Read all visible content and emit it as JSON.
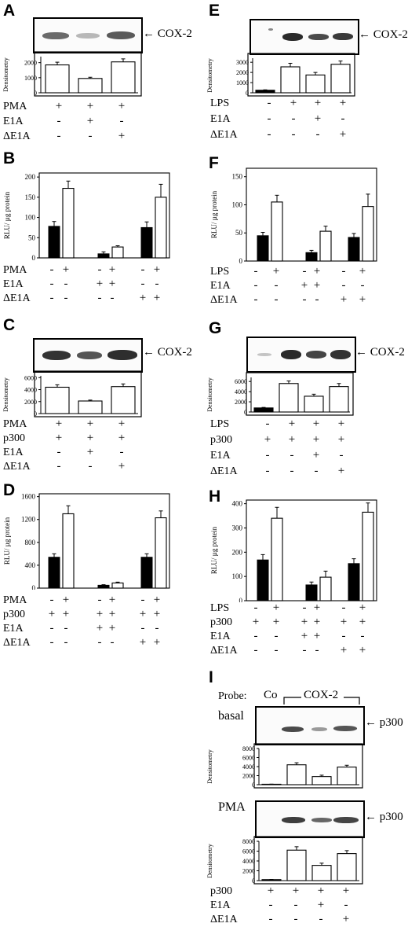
{
  "marker_labels": {
    "cox2": "COX-2",
    "p300": "p300"
  },
  "panels": {
    "A": {
      "letter": "A",
      "ylabel": "Densitometry",
      "yticks": [
        "0",
        "1000",
        "2000"
      ],
      "bars": [
        1850,
        950,
        2050
      ],
      "errors": [
        180,
        80,
        200
      ],
      "ymax": 2400,
      "rows": [
        {
          "label": "PMA",
          "marks": [
            "+",
            "+",
            "+"
          ]
        },
        {
          "label": "E1A",
          "marks": [
            "-",
            "+",
            "-"
          ]
        },
        {
          "label": "ΔE1A",
          "marks": [
            "-",
            "-",
            "+"
          ]
        }
      ]
    },
    "B": {
      "letter": "B",
      "ylabel": "RLU/ µg protein",
      "yticks": [
        "0",
        "50",
        "100",
        "150",
        "200"
      ],
      "black": [
        78,
        10,
        75
      ],
      "white": [
        172,
        27,
        150
      ],
      "errB": [
        12,
        5,
        14
      ],
      "errW": [
        18,
        3,
        32
      ],
      "ymax": 210,
      "rows": [
        {
          "label": "PMA",
          "marks": [
            "-",
            "+",
            "-",
            "+",
            "-",
            "+"
          ]
        },
        {
          "label": "E1A",
          "marks": [
            "-",
            "-",
            "+",
            "+",
            "-",
            "-"
          ]
        },
        {
          "label": "ΔE1A",
          "marks": [
            "-",
            "-",
            "-",
            "-",
            "+",
            "+"
          ]
        }
      ]
    },
    "C": {
      "letter": "C",
      "ylabel": "Densitometry",
      "yticks": [
        "0",
        "2000",
        "4000",
        "6000"
      ],
      "bars": [
        4400,
        2100,
        4500
      ],
      "errors": [
        400,
        150,
        450
      ],
      "ymax": 6300,
      "rows": [
        {
          "label": "PMA",
          "marks": [
            "+",
            "+",
            "+"
          ]
        },
        {
          "label": "p300",
          "marks": [
            "+",
            "+",
            "+"
          ]
        },
        {
          "label": "E1A",
          "marks": [
            "-",
            "+",
            "-"
          ]
        },
        {
          "label": "ΔE1A",
          "marks": [
            "-",
            "-",
            "+"
          ]
        }
      ]
    },
    "D": {
      "letter": "D",
      "ylabel": "RLU/ µg protein",
      "yticks": [
        "0",
        "400",
        "800",
        "1200",
        "1600"
      ],
      "black": [
        540,
        50,
        540
      ],
      "white": [
        1300,
        90,
        1230
      ],
      "errB": [
        60,
        10,
        60
      ],
      "errW": [
        140,
        15,
        120
      ],
      "ymax": 1650,
      "rows": [
        {
          "label": "PMA",
          "marks": [
            "-",
            "+",
            "-",
            "+",
            "-",
            "+"
          ]
        },
        {
          "label": "p300",
          "marks": [
            "+",
            "+",
            "+",
            "+",
            "+",
            "+"
          ]
        },
        {
          "label": "E1A",
          "marks": [
            "-",
            "-",
            "+",
            "+",
            "-",
            "-"
          ]
        },
        {
          "label": "ΔE1A",
          "marks": [
            "-",
            "-",
            "-",
            "-",
            "+",
            "+"
          ]
        }
      ]
    },
    "E": {
      "letter": "E",
      "ylabel": "Densitometry",
      "yticks": [
        "0",
        "1000",
        "2000",
        "3000"
      ],
      "bars": [
        250,
        2550,
        1750,
        2800
      ],
      "first_black": true,
      "errors": [
        40,
        350,
        250,
        320
      ],
      "ymax": 3400,
      "rows": [
        {
          "label": "LPS",
          "marks": [
            "-",
            "+",
            "+",
            "+"
          ]
        },
        {
          "label": "E1A",
          "marks": [
            "-",
            "-",
            "+",
            "-"
          ]
        },
        {
          "label": "ΔE1A",
          "marks": [
            "-",
            "-",
            "-",
            "+"
          ]
        }
      ]
    },
    "F": {
      "letter": "F",
      "ylabel": "RLU/ µg protein",
      "yticks": [
        "0",
        "50",
        "100",
        "150"
      ],
      "black": [
        45,
        15,
        42
      ],
      "white": [
        105,
        53,
        97
      ],
      "errB": [
        6,
        4,
        7
      ],
      "errW": [
        12,
        9,
        22
      ],
      "ymax": 165,
      "rows": [
        {
          "label": "LPS",
          "marks": [
            "-",
            "+",
            "-",
            "+",
            "-",
            "+"
          ]
        },
        {
          "label": "E1A",
          "marks": [
            "-",
            "-",
            "+",
            "+",
            "-",
            "-"
          ]
        },
        {
          "label": "ΔE1A",
          "marks": [
            "-",
            "-",
            "-",
            "-",
            "+",
            "+"
          ]
        }
      ]
    },
    "G": {
      "letter": "G",
      "ylabel": "Densitometry",
      "yticks": [
        "0",
        "2000",
        "4000",
        "6000"
      ],
      "bars": [
        800,
        5600,
        3100,
        5000
      ],
      "first_black": true,
      "errors": [
        100,
        500,
        400,
        600
      ],
      "ymax": 6800,
      "rows": [
        {
          "label": "LPS",
          "marks": [
            "-",
            "+",
            "+",
            "+"
          ]
        },
        {
          "label": "p300",
          "marks": [
            "+",
            "+",
            "+",
            "+"
          ]
        },
        {
          "label": "E1A",
          "marks": [
            "-",
            "-",
            "+",
            "-"
          ]
        },
        {
          "label": "ΔE1A",
          "marks": [
            "-",
            "-",
            "-",
            "+"
          ]
        }
      ]
    },
    "H": {
      "letter": "H",
      "ylabel": "RLU/ µg protein",
      "yticks": [
        "0",
        "100",
        "200",
        "300",
        "400"
      ],
      "black": [
        168,
        65,
        153
      ],
      "white": [
        340,
        97,
        365
      ],
      "errB": [
        22,
        12,
        20
      ],
      "errW": [
        45,
        25,
        38
      ],
      "ymax": 415,
      "rows": [
        {
          "label": "LPS",
          "marks": [
            "-",
            "+",
            "-",
            "+",
            "-",
            "+"
          ]
        },
        {
          "label": "p300",
          "marks": [
            "+",
            "+",
            "+",
            "+",
            "+",
            "+"
          ]
        },
        {
          "label": "E1A",
          "marks": [
            "-",
            "-",
            "+",
            "+",
            "-",
            "-"
          ]
        },
        {
          "label": "ΔE1A",
          "marks": [
            "-",
            "-",
            "-",
            "-",
            "+",
            "+"
          ]
        }
      ]
    },
    "I": {
      "letter": "I",
      "probe_label": "Probe:",
      "co_label": "Co",
      "cox_label": "COX-2",
      "basal_label": "basal",
      "pma_label": "PMA",
      "basal": {
        "ylabel": "Densitometry",
        "yticks": [
          "0",
          "2000",
          "4000",
          "6000",
          "8000"
        ],
        "bars": [
          100,
          4400,
          1800,
          3900
        ],
        "first_black": true,
        "errors": [
          20,
          450,
          300,
          400
        ],
        "ymax": 8000
      },
      "pma": {
        "ylabel": "Densitometry",
        "yticks": [
          "0",
          "2000",
          "4000",
          "6000",
          "8000"
        ],
        "bars": [
          200,
          6200,
          3100,
          5500
        ],
        "first_black": true,
        "errors": [
          30,
          700,
          450,
          600
        ],
        "ymax": 8000
      },
      "rows": [
        {
          "label": "p300",
          "marks": [
            "+",
            "+",
            "+",
            "+"
          ]
        },
        {
          "label": "E1A",
          "marks": [
            "-",
            "-",
            "+",
            "-"
          ]
        },
        {
          "label": "ΔE1A",
          "marks": [
            "-",
            "-",
            "-",
            "+"
          ]
        }
      ]
    }
  }
}
